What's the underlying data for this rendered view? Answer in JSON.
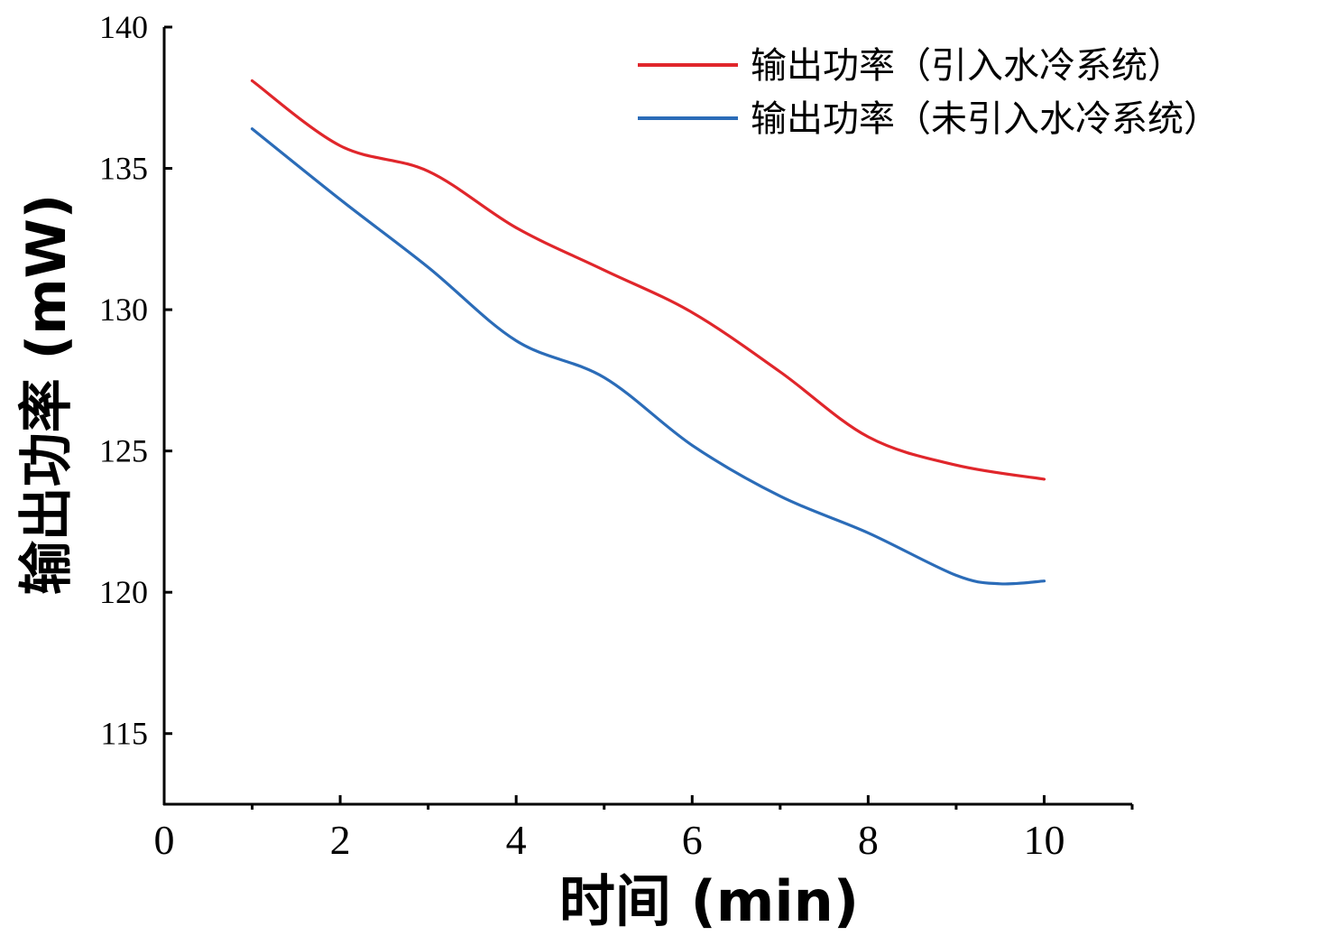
{
  "chart_data": {
    "type": "line",
    "title": "",
    "xlabel": "时间 (min)",
    "ylabel": "输出功率 (mW)",
    "xlim": [
      0,
      11
    ],
    "ylim": [
      112.5,
      140
    ],
    "x_ticks": [
      0,
      2,
      4,
      6,
      8,
      10
    ],
    "y_ticks": [
      115,
      120,
      125,
      130,
      135,
      140
    ],
    "legend_position": "top-right",
    "grid": false,
    "series": [
      {
        "name": "输出功率（引入水冷系统）",
        "color": "#e0262b",
        "x": [
          1,
          2,
          3,
          4,
          5,
          6,
          7,
          8,
          9,
          10
        ],
        "y": [
          138.1,
          135.8,
          134.9,
          132.9,
          131.4,
          129.9,
          127.8,
          125.5,
          124.5,
          124.0
        ]
      },
      {
        "name": "输出功率（未引入水冷系统）",
        "color": "#2b6cb8",
        "x": [
          1,
          2,
          3,
          4,
          5,
          6,
          7,
          8,
          9,
          9.5,
          10
        ],
        "y": [
          136.4,
          133.9,
          131.5,
          128.9,
          127.6,
          125.2,
          123.4,
          122.1,
          120.6,
          120.3,
          120.4
        ]
      }
    ]
  }
}
